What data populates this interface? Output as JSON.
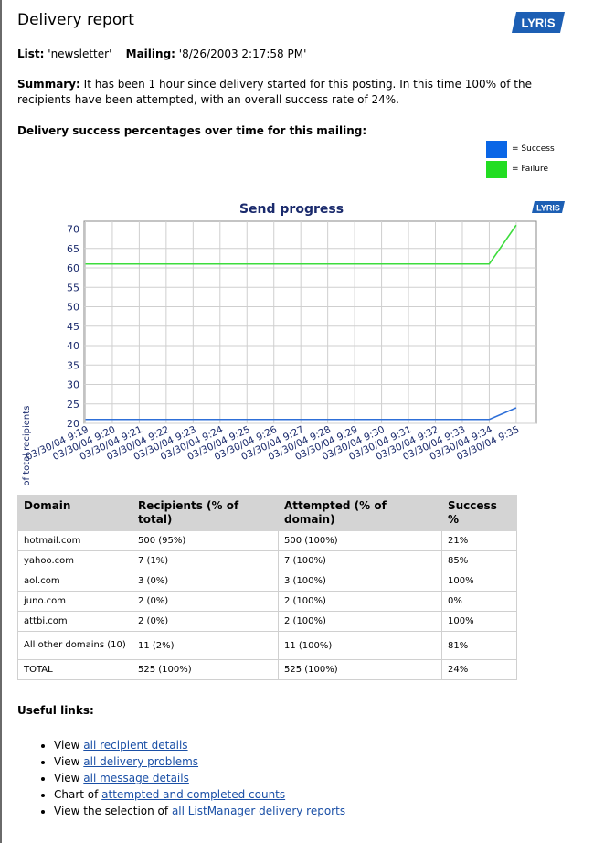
{
  "page": {
    "title": "Delivery report",
    "logo_text": "LYRIS",
    "list_label": "List:",
    "list_value": "'newsletter'",
    "mailing_label": "Mailing:",
    "mailing_value": "'8/26/2003 2:17:58 PM'",
    "summary_label": "Summary:",
    "summary_text": "It has been 1 hour since delivery started for this posting. In this time 100% of the recipients have been attempted, with an overall success rate of 24%.",
    "chart_heading": "Delivery success percentages over time for this mailing:"
  },
  "legend": [
    {
      "label": "= Success",
      "color": "#0a66e6"
    },
    {
      "label": "= Failure",
      "color": "#22dd22"
    }
  ],
  "chart_data": {
    "type": "line",
    "title": "Send progress",
    "logo_text": "LYRIS",
    "ylabel": "Percentage of total recipients",
    "ylim": [
      20,
      72
    ],
    "yticks": [
      20,
      25,
      30,
      35,
      40,
      45,
      50,
      55,
      60,
      65,
      70
    ],
    "x": [
      "03/30/04 9:19",
      "03/30/04 9:20",
      "03/30/04 9:21",
      "03/30/04 9:22",
      "03/30/04 9:23",
      "03/30/04 9:24",
      "03/30/04 9:25",
      "03/30/04 9:26",
      "03/30/04 9:27",
      "03/30/04 9:28",
      "03/30/04 9:29",
      "03/30/04 9:30",
      "03/30/04 9:31",
      "03/30/04 9:32",
      "03/30/04 9:33",
      "03/30/04 9:34",
      "03/30/04 9:35"
    ],
    "grid": true,
    "series": [
      {
        "name": "Success",
        "color": "#2e6fd8",
        "values": [
          21,
          21,
          21,
          21,
          21,
          21,
          21,
          21,
          21,
          21,
          21,
          21,
          21,
          21,
          21,
          21,
          24
        ]
      },
      {
        "name": "Failure",
        "color": "#3ddc3d",
        "values": [
          61,
          61,
          61,
          61,
          61,
          61,
          61,
          61,
          61,
          61,
          61,
          61,
          61,
          61,
          61,
          61,
          71
        ]
      }
    ]
  },
  "table": {
    "headers": [
      "Domain",
      "Recipients (% of total)",
      "Attempted (% of domain)",
      "Success %"
    ],
    "rows": [
      [
        "hotmail.com",
        "500 (95%)",
        "500 (100%)",
        "21%"
      ],
      [
        "yahoo.com",
        "7 (1%)",
        "7 (100%)",
        "85%"
      ],
      [
        "aol.com",
        "3 (0%)",
        "3 (100%)",
        "100%"
      ],
      [
        "juno.com",
        "2 (0%)",
        "2 (100%)",
        "0%"
      ],
      [
        "attbi.com",
        "2 (0%)",
        "2 (100%)",
        "100%"
      ],
      [
        "All other domains (10)",
        "11 (2%)",
        "11 (100%)",
        "81%"
      ],
      [
        "TOTAL",
        "525 (100%)",
        "525 (100%)",
        "24%"
      ]
    ]
  },
  "useful_links": {
    "heading": "Useful links:",
    "items": [
      {
        "prefix": "View ",
        "link": "all recipient details"
      },
      {
        "prefix": "View ",
        "link": "all delivery problems"
      },
      {
        "prefix": "View ",
        "link": "all message details"
      },
      {
        "prefix": "Chart of ",
        "link": "attempted and completed counts"
      },
      {
        "prefix": "View the selection of ",
        "link": "all ListManager delivery reports"
      }
    ]
  }
}
